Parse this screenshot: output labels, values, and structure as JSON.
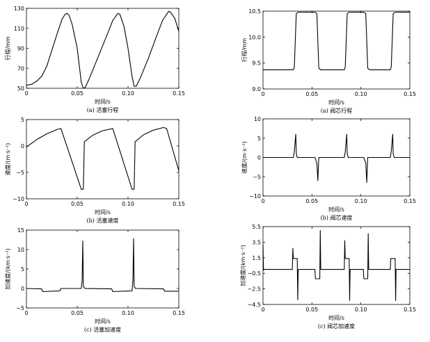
{
  "chart_data": [
    {
      "id": "piston-stroke",
      "type": "line",
      "caption": "(a)  活塞行程",
      "xlabel": "时间/s",
      "ylabel": "行程/mm",
      "xlim": [
        0,
        0.15
      ],
      "ylim": [
        50,
        130
      ],
      "xticks": [
        "0",
        "0.05",
        "0.10",
        "0.15"
      ],
      "yticks": [
        "50",
        "70",
        "90",
        "110",
        "130"
      ],
      "x": [
        0,
        0.005,
        0.01,
        0.015,
        0.02,
        0.025,
        0.03,
        0.035,
        0.038,
        0.04,
        0.042,
        0.045,
        0.05,
        0.054,
        0.056,
        0.058,
        0.062,
        0.07,
        0.078,
        0.085,
        0.09,
        0.092,
        0.096,
        0.1,
        0.104,
        0.106,
        0.108,
        0.112,
        0.12,
        0.128,
        0.134,
        0.14,
        0.142,
        0.146,
        0.15
      ],
      "y": [
        53,
        54,
        57,
        62,
        72,
        88,
        104,
        119,
        124,
        125,
        123,
        114,
        90,
        56,
        50,
        51,
        60,
        80,
        100,
        118,
        125,
        124,
        112,
        90,
        62,
        52,
        52,
        60,
        80,
        102,
        118,
        127,
        126,
        120,
        107
      ]
    },
    {
      "id": "valve-stroke",
      "type": "line",
      "caption": "(a)  阀芯行程",
      "xlabel": "时间/s",
      "ylabel": "行程/mm",
      "xlim": [
        0,
        0.15
      ],
      "ylim": [
        9.0,
        10.5
      ],
      "xticks": [
        "0",
        "0.05",
        "0.10",
        "0.15"
      ],
      "yticks": [
        "9.0",
        "9.5",
        "10.0",
        "10.5"
      ],
      "x": [
        0,
        0.031,
        0.032,
        0.034,
        0.036,
        0.053,
        0.055,
        0.057,
        0.059,
        0.083,
        0.084,
        0.086,
        0.088,
        0.103,
        0.105,
        0.107,
        0.109,
        0.13,
        0.131,
        0.133,
        0.135,
        0.15
      ],
      "y": [
        9.37,
        9.37,
        9.42,
        10.45,
        10.48,
        10.48,
        10.45,
        9.4,
        9.37,
        9.37,
        9.42,
        10.45,
        10.48,
        10.48,
        10.45,
        9.4,
        9.37,
        9.37,
        9.42,
        10.45,
        10.48,
        10.48
      ]
    },
    {
      "id": "piston-velocity",
      "type": "line",
      "caption": "(b)  活塞速度",
      "xlabel": "时间/s",
      "ylabel": "速度/(m·s⁻¹)",
      "xlim": [
        0,
        0.15
      ],
      "ylim": [
        -10,
        5
      ],
      "xticks": [
        "0",
        "0.05",
        "0.10",
        "0.15"
      ],
      "yticks": [
        "−10",
        "−5",
        "0",
        "5"
      ],
      "x": [
        0,
        0.01,
        0.02,
        0.03,
        0.034,
        0.054,
        0.056,
        0.057,
        0.065,
        0.075,
        0.085,
        0.104,
        0.106,
        0.107,
        0.115,
        0.125,
        0.135,
        0.138,
        0.15
      ],
      "y": [
        -0.2,
        1.2,
        2.3,
        3.1,
        3.3,
        -8.2,
        -8.2,
        0.8,
        2.0,
        2.9,
        3.3,
        -8.2,
        -8.2,
        0.8,
        2.1,
        3.0,
        3.5,
        3.3,
        -4.7
      ]
    },
    {
      "id": "valve-velocity",
      "type": "line",
      "caption": "(b)  阀芯速度",
      "xlabel": "时间/s",
      "ylabel": "速度/(m·s⁻¹)",
      "xlim": [
        0,
        0.15
      ],
      "ylim": [
        -10,
        10
      ],
      "xticks": [
        "0",
        "0.05",
        "0.10",
        "0.15"
      ],
      "yticks": [
        "−10",
        "−5",
        "0",
        "5",
        "10"
      ],
      "x": [
        0,
        0.031,
        0.032,
        0.0335,
        0.034,
        0.035,
        0.053,
        0.055,
        0.056,
        0.057,
        0.083,
        0.084,
        0.0855,
        0.086,
        0.087,
        0.103,
        0.105,
        0.106,
        0.107,
        0.13,
        0.131,
        0.1325,
        0.133,
        0.134,
        0.15
      ],
      "y": [
        0,
        0,
        1.5,
        6.0,
        1.0,
        0,
        0,
        -1.5,
        -6.0,
        0,
        0,
        1.5,
        6.0,
        1.0,
        0,
        0,
        -1.5,
        -6.5,
        0,
        0,
        1.5,
        6.0,
        1.0,
        0,
        0
      ]
    },
    {
      "id": "piston-acceleration",
      "type": "line",
      "caption": "(c)  活塞加速度",
      "xlabel": "时间/s",
      "ylabel": "加速度/(km·s⁻²)",
      "xlim": [
        0,
        0.15
      ],
      "ylim": [
        -5,
        15
      ],
      "xticks": [
        "0",
        "0.05",
        "0.10",
        "0.15"
      ],
      "yticks": [
        "−5",
        "0",
        "5",
        "10",
        "15"
      ],
      "x": [
        0,
        0.015,
        0.016,
        0.033,
        0.034,
        0.054,
        0.0548,
        0.0555,
        0.056,
        0.0575,
        0.084,
        0.085,
        0.104,
        0.1048,
        0.1055,
        0.106,
        0.1075,
        0.135,
        0.136,
        0.15
      ],
      "y": [
        0,
        -0.1,
        -0.8,
        -0.6,
        0,
        0,
        2.0,
        12.2,
        0.5,
        0,
        -0.1,
        -0.8,
        -0.6,
        2.0,
        12.8,
        0.5,
        0,
        -0.1,
        -0.7,
        -0.7
      ]
    },
    {
      "id": "valve-acceleration",
      "type": "line",
      "caption": "(c)  阀芯加速度",
      "xlabel": "时间/s",
      "ylabel": "加速度/(km·s⁻²)",
      "xlim": [
        0,
        0.15
      ],
      "ylim": [
        -4.5,
        5.5
      ],
      "xticks": [
        "0",
        "0.05",
        "0.10",
        "0.15"
      ],
      "yticks": [
        "−4.5",
        "−2.5",
        "−0.5",
        "1.5",
        "3.5",
        "5.5"
      ],
      "x": [
        0,
        0.0005,
        0.001,
        0.03,
        0.0305,
        0.031,
        0.0315,
        0.035,
        0.0355,
        0.036,
        0.053,
        0.0535,
        0.054,
        0.0545,
        0.058,
        0.0585,
        0.059,
        0.0595,
        0.083,
        0.0835,
        0.084,
        0.0845,
        0.088,
        0.0885,
        0.089,
        0.0895,
        0.1025,
        0.103,
        0.1035,
        0.104,
        0.107,
        0.1075,
        0.108,
        0.13,
        0.1305,
        0.131,
        0.1315,
        0.135,
        0.1355,
        0.136,
        0.1365,
        0.15
      ],
      "y": [
        3.2,
        -0.1,
        0,
        0,
        2.7,
        1.4,
        1.4,
        1.4,
        -3.9,
        0,
        0,
        -1.2,
        -1.2,
        -1.2,
        -1.2,
        5.0,
        0,
        0,
        0,
        3.7,
        1.4,
        1.4,
        1.4,
        -4.0,
        0,
        0,
        0,
        -1.2,
        -1.2,
        -1.2,
        -1.2,
        4.6,
        0,
        0,
        1.4,
        1.4,
        1.4,
        1.4,
        -4.0,
        0,
        0,
        0
      ]
    }
  ]
}
